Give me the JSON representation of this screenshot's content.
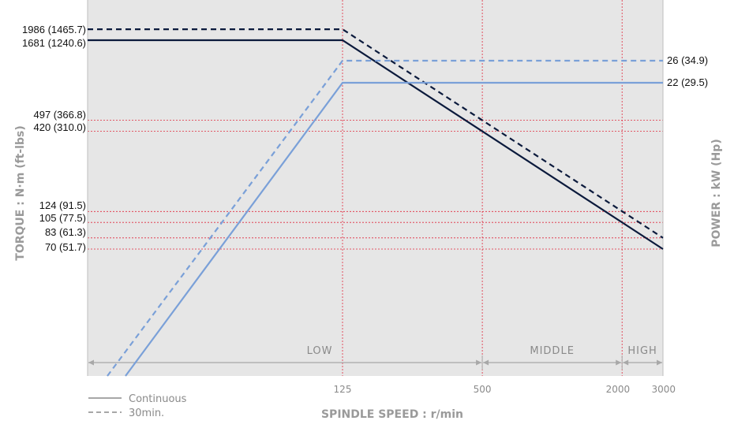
{
  "chart_data": {
    "type": "line",
    "xlabel": "SPINDLE SPEED : r/min",
    "ylabel_left": "TORQUE : N·m (ft-lbs)",
    "ylabel_right": "POWER : kW (Hp)",
    "x_ticks": [
      "125",
      "500",
      "2000",
      "3000"
    ],
    "torque_ticks": [
      {
        "label": "1986 (1465.7)",
        "value": 1986
      },
      {
        "label": "1681 (1240.6)",
        "value": 1681
      },
      {
        "label": "497 (366.8)",
        "value": 497
      },
      {
        "label": "420 (310.0)",
        "value": 420
      },
      {
        "label": "124 (91.5)",
        "value": 124
      },
      {
        "label": "105 (77.5)",
        "value": 105
      },
      {
        "label": "83 (61.3)",
        "value": 83
      },
      {
        "label": "70 (51.7)",
        "value": 70
      }
    ],
    "power_ticks": [
      {
        "label": "26 (34.9)",
        "value": 26
      },
      {
        "label": "22 (29.5)",
        "value": 22
      }
    ],
    "ranges": [
      "LOW",
      "MIDDLE",
      "HIGH"
    ],
    "legend": [
      "Continuous",
      "30min."
    ],
    "series": [
      {
        "name": "Continuous",
        "quantity": "torque",
        "style": "solid",
        "color": "#0b1a3c",
        "points": [
          [
            0,
            1681
          ],
          [
            125,
            1681
          ],
          [
            500,
            420
          ],
          [
            3000,
            70
          ]
        ]
      },
      {
        "name": "30min.",
        "quantity": "torque",
        "style": "dashed",
        "color": "#0b1a3c",
        "points": [
          [
            0,
            1986
          ],
          [
            125,
            1986
          ],
          [
            500,
            497
          ],
          [
            3000,
            83
          ]
        ]
      },
      {
        "name": "Continuous",
        "quantity": "power",
        "style": "solid",
        "color": "#7aa0d8",
        "points": [
          [
            125,
            22
          ],
          [
            3000,
            22
          ]
        ]
      },
      {
        "name": "30min.",
        "quantity": "power",
        "style": "dashed",
        "color": "#7aa0d8",
        "points": [
          [
            125,
            26
          ],
          [
            3000,
            26
          ]
        ]
      }
    ],
    "grid_color": "#e0283c",
    "plot_background": "#e6e6e6"
  }
}
